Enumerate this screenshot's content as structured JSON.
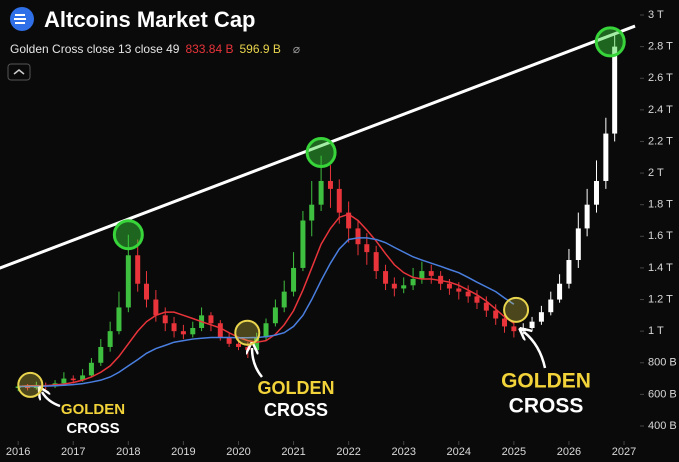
{
  "chart_data": {
    "type": "candlestick",
    "title": "Altcoins Market Cap",
    "legend": {
      "label": "Golden Cross close 13 close 49",
      "values": [
        {
          "text": "833.84 B",
          "color": "#e8343a"
        },
        {
          "text": "596.9 B",
          "color": "#e8d44d"
        }
      ],
      "symbol": "⌀"
    },
    "xlim": [
      2015.67,
      2027.29
    ],
    "xticks": [
      2016,
      2017,
      2018,
      2019,
      2020,
      2021,
      2022,
      2023,
      2024,
      2025,
      2026,
      2027
    ],
    "ylim": [
      400,
      3000
    ],
    "yticks": [
      {
        "value": 400,
        "label": "400 B"
      },
      {
        "value": 600,
        "label": "600 B"
      },
      {
        "value": 800,
        "label": "800 B"
      },
      {
        "value": 1000,
        "label": "1 T"
      },
      {
        "value": 1200,
        "label": "1.2 T"
      },
      {
        "value": 1400,
        "label": "1.4 T"
      },
      {
        "value": 1600,
        "label": "1.6 T"
      },
      {
        "value": 1800,
        "label": "1.8 T"
      },
      {
        "value": 2000,
        "label": "2 T"
      },
      {
        "value": 2200,
        "label": "2.2 T"
      },
      {
        "value": 2400,
        "label": "2.4 T"
      },
      {
        "value": 2600,
        "label": "2.6 T"
      },
      {
        "value": 2800,
        "label": "2.8 T"
      },
      {
        "value": 3000,
        "label": "3 T"
      }
    ],
    "candles": [
      {
        "up_color": "#3fbf3f",
        "down_color": "#e8343a",
        "x": [
          2016.0,
          2016.17,
          2016.33,
          2016.5,
          2016.67,
          2016.83,
          2017.0,
          2017.17,
          2017.33,
          2017.5,
          2017.67,
          2017.83,
          2018.0,
          2018.17,
          2018.33,
          2018.5,
          2018.67,
          2018.83,
          2019.0,
          2019.17,
          2019.33,
          2019.5,
          2019.67,
          2019.83,
          2020.0,
          2020.17,
          2020.33,
          2020.5,
          2020.67,
          2020.83,
          2021.0,
          2021.17,
          2021.33,
          2021.5,
          2021.67,
          2021.83,
          2022.0,
          2022.17,
          2022.33,
          2022.5,
          2022.67,
          2022.83,
          2023.0,
          2023.17,
          2023.33,
          2023.5,
          2023.67,
          2023.83,
          2024.0,
          2024.17,
          2024.33,
          2024.5,
          2024.67,
          2024.83,
          2025.0
        ],
        "ohlc": [
          [
            640,
            670,
            620,
            650
          ],
          [
            650,
            665,
            625,
            640
          ],
          [
            640,
            680,
            630,
            660
          ],
          [
            660,
            675,
            630,
            650
          ],
          [
            650,
            690,
            640,
            670
          ],
          [
            670,
            740,
            660,
            700
          ],
          [
            700,
            720,
            670,
            690
          ],
          [
            690,
            760,
            680,
            720
          ],
          [
            720,
            830,
            710,
            800
          ],
          [
            800,
            950,
            780,
            900
          ],
          [
            900,
            1060,
            870,
            1000
          ],
          [
            1000,
            1250,
            980,
            1150
          ],
          [
            1150,
            1610,
            1120,
            1480
          ],
          [
            1480,
            1580,
            1250,
            1300
          ],
          [
            1300,
            1380,
            1150,
            1200
          ],
          [
            1200,
            1260,
            1060,
            1100
          ],
          [
            1100,
            1150,
            1000,
            1050
          ],
          [
            1050,
            1090,
            960,
            1000
          ],
          [
            1000,
            1040,
            950,
            980
          ],
          [
            980,
            1060,
            960,
            1020
          ],
          [
            1020,
            1150,
            1000,
            1100
          ],
          [
            1100,
            1120,
            1000,
            1050
          ],
          [
            1050,
            1070,
            940,
            960
          ],
          [
            960,
            990,
            900,
            920
          ],
          [
            920,
            960,
            880,
            900
          ],
          [
            900,
            930,
            830,
            880
          ],
          [
            880,
            990,
            860,
            960
          ],
          [
            960,
            1080,
            940,
            1050
          ],
          [
            1050,
            1200,
            1030,
            1150
          ],
          [
            1150,
            1320,
            1120,
            1250
          ],
          [
            1250,
            1500,
            1220,
            1400
          ],
          [
            1400,
            1760,
            1380,
            1700
          ],
          [
            1700,
            1950,
            1600,
            1800
          ],
          [
            1800,
            2110,
            1760,
            1950
          ],
          [
            1950,
            2050,
            1780,
            1900
          ],
          [
            1900,
            1960,
            1680,
            1750
          ],
          [
            1750,
            1820,
            1560,
            1650
          ],
          [
            1650,
            1700,
            1480,
            1550
          ],
          [
            1550,
            1620,
            1420,
            1500
          ],
          [
            1500,
            1540,
            1330,
            1380
          ],
          [
            1380,
            1420,
            1260,
            1300
          ],
          [
            1300,
            1340,
            1220,
            1270
          ],
          [
            1270,
            1340,
            1240,
            1290
          ],
          [
            1290,
            1400,
            1260,
            1330
          ],
          [
            1330,
            1440,
            1300,
            1380
          ],
          [
            1380,
            1420,
            1300,
            1350
          ],
          [
            1350,
            1380,
            1260,
            1300
          ],
          [
            1300,
            1330,
            1230,
            1270
          ],
          [
            1270,
            1310,
            1200,
            1250
          ],
          [
            1250,
            1290,
            1180,
            1220
          ],
          [
            1220,
            1260,
            1140,
            1180
          ],
          [
            1180,
            1220,
            1090,
            1130
          ],
          [
            1130,
            1170,
            1040,
            1080
          ],
          [
            1080,
            1110,
            990,
            1030
          ],
          [
            1030,
            1060,
            960,
            1000
          ]
        ]
      },
      {
        "up_color": "#ffffff",
        "down_color": "#ffffff",
        "x": [
          2025.17,
          2025.33,
          2025.5,
          2025.67,
          2025.83,
          2026.0,
          2026.17,
          2026.33,
          2026.5,
          2026.67,
          2026.83
        ],
        "ohlc": [
          [
            1000,
            1050,
            980,
            1020
          ],
          [
            1020,
            1090,
            1000,
            1060
          ],
          [
            1060,
            1160,
            1040,
            1120
          ],
          [
            1120,
            1250,
            1100,
            1200
          ],
          [
            1200,
            1360,
            1180,
            1300
          ],
          [
            1300,
            1520,
            1270,
            1450
          ],
          [
            1450,
            1750,
            1400,
            1650
          ],
          [
            1650,
            1900,
            1600,
            1800
          ],
          [
            1800,
            2080,
            1750,
            1950
          ],
          [
            1950,
            2350,
            1900,
            2250
          ],
          [
            2250,
            2880,
            2200,
            2800
          ]
        ]
      }
    ],
    "lines": [
      {
        "color": "#e8343a",
        "values": [
          650,
          655,
          655,
          655,
          660,
          665,
          675,
          690,
          710,
          740,
          780,
          840,
          920,
          1000,
          1060,
          1100,
          1120,
          1120,
          1100,
          1080,
          1060,
          1040,
          1020,
          990,
          960,
          940,
          930,
          940,
          980,
          1040,
          1130,
          1260,
          1400,
          1550,
          1650,
          1720,
          1740,
          1700,
          1640,
          1570,
          1490,
          1420,
          1370,
          1340,
          1330,
          1330,
          1320,
          1310,
          1290,
          1260,
          1230,
          1190,
          1140,
          1090,
          1050
        ]
      },
      {
        "color": "#4a7fe0",
        "values": [
          650,
          650,
          650,
          652,
          655,
          658,
          662,
          668,
          678,
          690,
          710,
          740,
          780,
          820,
          860,
          890,
          910,
          930,
          940,
          950,
          955,
          960,
          960,
          960,
          958,
          958,
          960,
          965,
          975,
          990,
          1030,
          1100,
          1200,
          1320,
          1430,
          1520,
          1580,
          1590,
          1590,
          1580,
          1560,
          1530,
          1500,
          1470,
          1450,
          1430,
          1410,
          1390,
          1370,
          1340,
          1310,
          1280,
          1250,
          1210,
          1170
        ]
      }
    ],
    "trendline": {
      "color": "#ffffff",
      "x": [
        2015.6,
        2027.2
      ],
      "values": [
        1390,
        2930
      ]
    },
    "highlights": [
      {
        "color": "#e8d44d",
        "x": 2016.22,
        "y": 660
      },
      {
        "color": "#e8d44d",
        "x": 2020.16,
        "y": 990
      },
      {
        "color": "#e8d44d",
        "x": 2025.04,
        "y": 1135
      },
      {
        "color": "#37d43a",
        "x": 2018.0,
        "y": 1610
      },
      {
        "color": "#37d43a",
        "x": 2021.5,
        "y": 2130
      },
      {
        "color": "#37d43a",
        "x": 2026.75,
        "y": 2830
      }
    ],
    "annotations": [
      {
        "lines": [
          "GOLDEN",
          "CROSS"
        ]
      },
      {
        "lines": [
          "GOLDEN",
          "CROSS"
        ]
      },
      {
        "lines": [
          "GOLDEN",
          "CROSS"
        ]
      }
    ]
  }
}
